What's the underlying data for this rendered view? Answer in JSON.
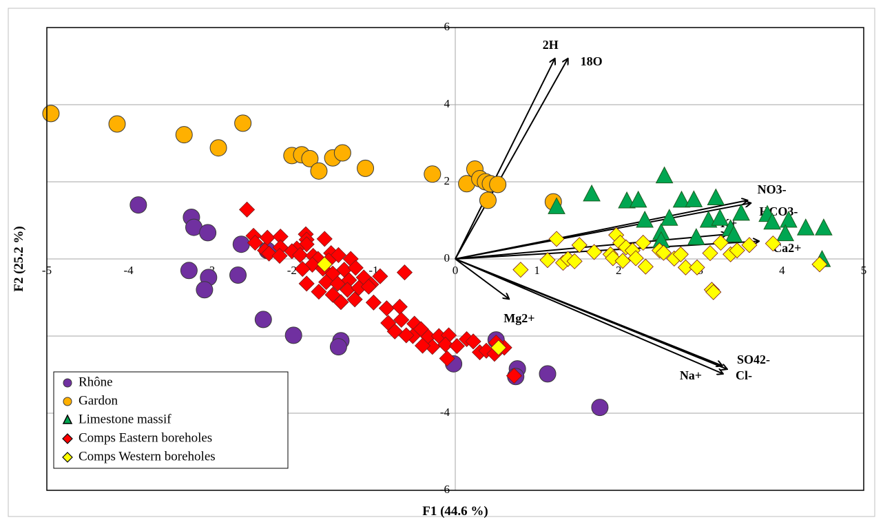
{
  "chart_data": {
    "type": "scatter",
    "title": "",
    "xlabel": "F1 (44.6 %)",
    "ylabel": "F2 (25.2 %)",
    "xlim": [
      -5,
      5
    ],
    "ylim": [
      -6,
      6
    ],
    "x_ticks": [
      "-5",
      "-4",
      "-3",
      "-2",
      "-1",
      "0",
      "1",
      "2",
      "3",
      "4",
      "5"
    ],
    "y_ticks": [
      "6",
      "4",
      "2",
      "0",
      "-2",
      "-4",
      "-6"
    ],
    "grid": "horizontal",
    "legend_position": "bottom-left",
    "series": [
      {
        "name": "Rhône",
        "marker": "circle",
        "color": "#7030A0",
        "points": [
          [
            -3.88,
            1.4
          ],
          [
            -3.23,
            1.08
          ],
          [
            -3.2,
            0.82
          ],
          [
            -3.03,
            0.68
          ],
          [
            -2.62,
            0.38
          ],
          [
            -2.3,
            0.22
          ],
          [
            -3.26,
            -0.3
          ],
          [
            -3.02,
            -0.48
          ],
          [
            -3.07,
            -0.8
          ],
          [
            -2.66,
            -0.42
          ],
          [
            -2.35,
            -1.57
          ],
          [
            -1.98,
            -1.98
          ],
          [
            -1.4,
            -2.12
          ],
          [
            -1.43,
            -2.28
          ],
          [
            -0.02,
            -2.72
          ],
          [
            0.5,
            -2.1
          ],
          [
            0.76,
            -2.85
          ],
          [
            0.74,
            -3.05
          ],
          [
            1.13,
            -2.98
          ],
          [
            1.77,
            -3.85
          ]
        ]
      },
      {
        "name": "Gardon",
        "marker": "circle",
        "color": "#FFB000",
        "points": [
          [
            -4.95,
            3.77
          ],
          [
            -4.14,
            3.5
          ],
          [
            -3.32,
            3.22
          ],
          [
            -2.9,
            2.88
          ],
          [
            -2.6,
            3.52
          ],
          [
            -2.0,
            2.68
          ],
          [
            -1.88,
            2.7
          ],
          [
            -1.78,
            2.6
          ],
          [
            -1.67,
            2.28
          ],
          [
            -1.5,
            2.62
          ],
          [
            -1.38,
            2.75
          ],
          [
            -1.1,
            2.35
          ],
          [
            -0.28,
            2.2
          ],
          [
            0.14,
            1.95
          ],
          [
            0.24,
            2.33
          ],
          [
            0.3,
            2.08
          ],
          [
            0.37,
            2.0
          ],
          [
            0.43,
            1.95
          ],
          [
            0.52,
            1.93
          ],
          [
            0.4,
            1.52
          ],
          [
            1.2,
            1.48
          ]
        ]
      },
      {
        "name": "Limestone massif",
        "marker": "triangle",
        "color": "#00A651",
        "points": [
          [
            2.56,
            2.15
          ],
          [
            1.67,
            1.68
          ],
          [
            1.24,
            1.35
          ],
          [
            2.1,
            1.5
          ],
          [
            2.24,
            1.52
          ],
          [
            2.77,
            1.52
          ],
          [
            2.92,
            1.53
          ],
          [
            3.19,
            1.58
          ],
          [
            2.62,
            1.05
          ],
          [
            2.32,
            1.0
          ],
          [
            2.52,
            0.68
          ],
          [
            2.52,
            0.47
          ],
          [
            3.1,
            1.0
          ],
          [
            3.24,
            1.05
          ],
          [
            3.5,
            1.18
          ],
          [
            3.82,
            1.15
          ],
          [
            3.88,
            0.95
          ],
          [
            4.08,
            1.0
          ],
          [
            4.29,
            0.8
          ],
          [
            4.51,
            0.8
          ],
          [
            4.04,
            0.65
          ],
          [
            2.95,
            0.55
          ],
          [
            3.37,
            0.78
          ],
          [
            3.41,
            0.62
          ],
          [
            4.49,
            -0.02
          ]
        ]
      },
      {
        "name": "Comps Eastern boreholes",
        "marker": "diamond",
        "color": "#FF0000",
        "points": [
          [
            -2.55,
            1.28
          ],
          [
            -2.47,
            0.6
          ],
          [
            -2.3,
            0.55
          ],
          [
            -2.14,
            0.58
          ],
          [
            -1.83,
            0.64
          ],
          [
            -1.82,
            0.5
          ],
          [
            -1.82,
            0.38
          ],
          [
            -1.94,
            0.27
          ],
          [
            -2.0,
            0.2
          ],
          [
            -2.45,
            0.42
          ],
          [
            -2.33,
            0.22
          ],
          [
            -2.14,
            0.3
          ],
          [
            -1.9,
            0.1
          ],
          [
            -1.6,
            0.52
          ],
          [
            -1.74,
            0.08
          ],
          [
            -1.68,
            0.0
          ],
          [
            -1.52,
            0.15
          ],
          [
            -1.43,
            0.1
          ],
          [
            -1.28,
            0.0
          ],
          [
            -1.75,
            -0.15
          ],
          [
            -1.62,
            -0.25
          ],
          [
            -1.5,
            -0.38
          ],
          [
            -1.36,
            -0.28
          ],
          [
            -1.22,
            -0.23
          ],
          [
            -1.58,
            -0.6
          ],
          [
            -1.44,
            -0.64
          ],
          [
            -1.3,
            -0.55
          ],
          [
            -1.12,
            -0.48
          ],
          [
            -1.03,
            -0.66
          ],
          [
            -1.82,
            -0.64
          ],
          [
            -1.67,
            -0.85
          ],
          [
            -1.5,
            -0.93
          ],
          [
            -1.32,
            -0.8
          ],
          [
            -1.18,
            -0.75
          ],
          [
            -1.06,
            -0.72
          ],
          [
            -0.92,
            -0.45
          ],
          [
            -0.62,
            -0.35
          ],
          [
            -1.4,
            -1.12
          ],
          [
            -1.23,
            -1.05
          ],
          [
            -1.0,
            -1.13
          ],
          [
            -0.84,
            -1.28
          ],
          [
            -0.68,
            -1.24
          ],
          [
            -0.82,
            -1.66
          ],
          [
            -0.66,
            -1.58
          ],
          [
            -0.5,
            -1.68
          ],
          [
            -0.42,
            -1.82
          ],
          [
            -0.33,
            -2.02
          ],
          [
            -0.2,
            -2.0
          ],
          [
            -0.08,
            -1.98
          ],
          [
            -0.28,
            -2.28
          ],
          [
            -0.12,
            -2.22
          ],
          [
            0.02,
            -2.26
          ],
          [
            -0.52,
            -2.0
          ],
          [
            -0.4,
            -2.25
          ],
          [
            -0.6,
            -1.98
          ],
          [
            -0.74,
            -1.88
          ],
          [
            0.14,
            -2.08
          ],
          [
            0.22,
            -2.14
          ],
          [
            0.3,
            -2.42
          ],
          [
            0.38,
            -2.38
          ],
          [
            0.48,
            -2.46
          ],
          [
            0.6,
            -2.3
          ],
          [
            0.5,
            -2.17
          ],
          [
            0.72,
            -3.03
          ],
          [
            -0.1,
            -2.58
          ],
          [
            -1.55,
            -0.04
          ],
          [
            -2.28,
            0.14
          ],
          [
            -1.87,
            -0.26
          ],
          [
            -2.15,
            0.08
          ]
        ]
      },
      {
        "name": "Comps Western boreholes",
        "marker": "diamond",
        "color": "#FFFF00",
        "points": [
          [
            -1.6,
            -0.14
          ],
          [
            0.53,
            -2.3
          ],
          [
            0.8,
            -0.28
          ],
          [
            1.24,
            0.52
          ],
          [
            1.52,
            0.36
          ],
          [
            1.13,
            -0.03
          ],
          [
            1.32,
            -0.1
          ],
          [
            1.38,
            0.0
          ],
          [
            1.46,
            -0.06
          ],
          [
            1.7,
            0.18
          ],
          [
            1.9,
            0.12
          ],
          [
            1.97,
            0.62
          ],
          [
            2.02,
            0.42
          ],
          [
            2.09,
            0.3
          ],
          [
            1.93,
            0.02
          ],
          [
            2.05,
            -0.05
          ],
          [
            2.17,
            0.22
          ],
          [
            2.21,
            0.02
          ],
          [
            2.3,
            0.42
          ],
          [
            2.33,
            -0.2
          ],
          [
            2.5,
            0.22
          ],
          [
            2.55,
            0.16
          ],
          [
            2.68,
            0.01
          ],
          [
            2.76,
            0.12
          ],
          [
            2.82,
            -0.22
          ],
          [
            2.96,
            -0.22
          ],
          [
            3.12,
            0.15
          ],
          [
            3.14,
            -0.8
          ],
          [
            3.16,
            -0.86
          ],
          [
            3.25,
            0.42
          ],
          [
            3.37,
            0.12
          ],
          [
            3.45,
            0.22
          ],
          [
            3.6,
            0.36
          ],
          [
            3.89,
            0.4
          ],
          [
            4.46,
            -0.14
          ]
        ]
      }
    ],
    "vectors": [
      {
        "label": "2H",
        "x": 1.22,
        "y": 5.2
      },
      {
        "label": "18O",
        "x": 1.38,
        "y": 5.2
      },
      {
        "label": "NO3-",
        "x": 3.58,
        "y": 1.52
      },
      {
        "label": "HCO3-",
        "x": 3.62,
        "y": 1.45
      },
      {
        "label": "K+",
        "x": 3.33,
        "y": 0.64
      },
      {
        "label": "Ca2+",
        "x": 3.72,
        "y": 0.46
      },
      {
        "label": "Mg2+",
        "x": 0.66,
        "y": -1.04
      },
      {
        "label": "Na+",
        "x": 3.27,
        "y": -2.77
      },
      {
        "label": "SO42-",
        "x": 3.33,
        "y": -2.86
      },
      {
        "label": "Cl-",
        "x": 3.28,
        "y": -2.98
      }
    ]
  }
}
